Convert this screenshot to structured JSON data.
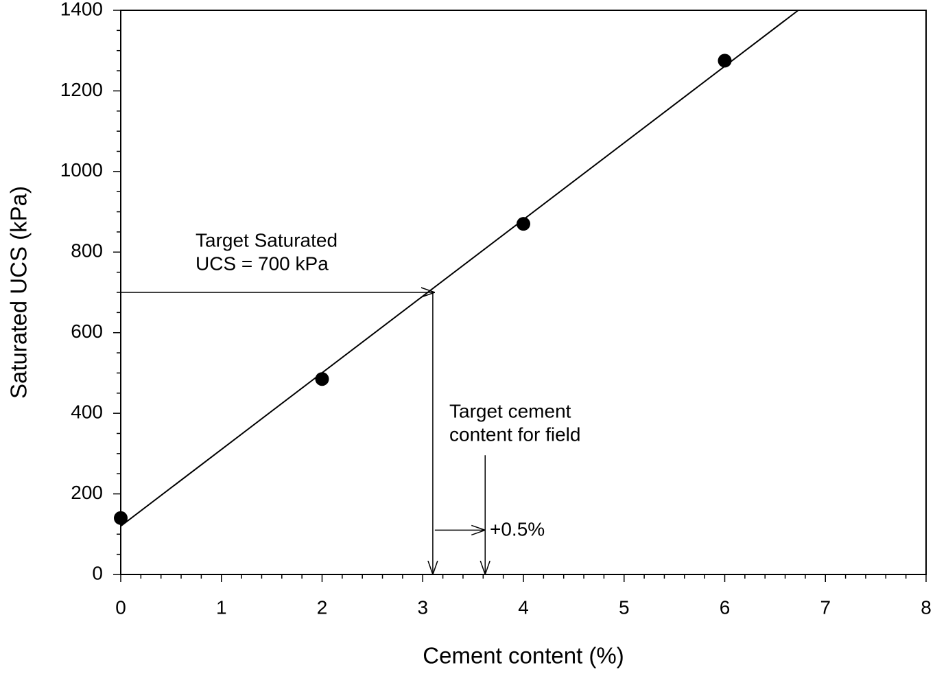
{
  "chart_data": {
    "type": "scatter",
    "x_label": "Cement content (%)",
    "y_label": "Saturated UCS (kPa)",
    "x": [
      0,
      2,
      4,
      6
    ],
    "values": [
      140,
      485,
      870,
      1275
    ],
    "color": "#000000",
    "fit_line": {
      "x": [
        0,
        6.73
      ],
      "values": [
        120,
        1400
      ]
    },
    "xlim": [
      0,
      8
    ],
    "ylim": [
      0,
      1400
    ],
    "xticks": [
      0,
      1,
      2,
      3,
      4,
      5,
      6,
      7,
      8
    ],
    "yticks": [
      0,
      200,
      400,
      600,
      800,
      1000,
      1200,
      1400
    ],
    "arrows": [
      {
        "x": [
          0,
          3.12
        ],
        "y": [
          700,
          700
        ]
      },
      {
        "x": [
          3.1,
          3.1
        ],
        "y": [
          700,
          0
        ]
      },
      {
        "x": [
          3.12,
          3.62
        ],
        "y": [
          110,
          110
        ]
      },
      {
        "x": [
          3.62,
          3.62
        ],
        "y": [
          296,
          0
        ]
      }
    ],
    "annotations": [
      {
        "lines": [
          "Target Saturated",
          "UCS = 700 kPa"
        ]
      },
      {
        "lines": [
          "Target cement",
          "content for field"
        ]
      },
      {
        "lines": [
          "+0.5%"
        ]
      }
    ]
  }
}
